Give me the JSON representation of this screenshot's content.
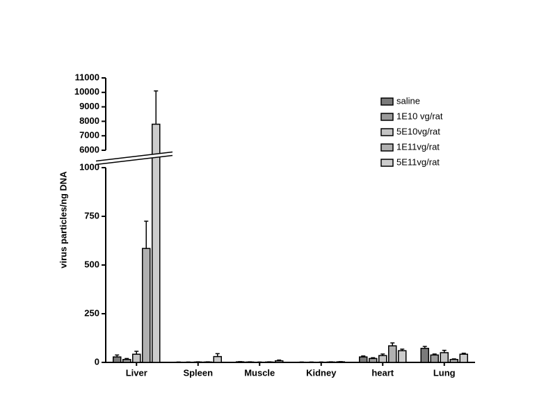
{
  "chart_data": {
    "type": "bar",
    "y_label": "virus particles/ng DNA",
    "categories": [
      "Liver",
      "Spleen",
      "Muscle",
      "Kidney",
      "heart",
      "Lung"
    ],
    "series": [
      {
        "name": "saline",
        "color": "#7a7a7a",
        "values": [
          28,
          1,
          3,
          1,
          28,
          72
        ],
        "errors": [
          10,
          1,
          1,
          1,
          5,
          10
        ]
      },
      {
        "name": "1E10 vg/rat",
        "color": "#9a9a9a",
        "values": [
          15,
          1,
          2,
          1,
          20,
          38
        ],
        "errors": [
          5,
          1,
          1,
          1,
          4,
          5
        ]
      },
      {
        "name": "5E10vg/rat",
        "color": "#c4c4c4",
        "values": [
          42,
          2,
          1,
          1,
          35,
          50
        ],
        "errors": [
          15,
          1,
          1,
          1,
          8,
          12
        ]
      },
      {
        "name": "1E11vg/rat",
        "color": "#b0b0b0",
        "values": [
          585,
          2,
          2,
          2,
          85,
          15
        ],
        "errors": [
          140,
          1,
          1,
          1,
          15,
          3
        ]
      },
      {
        "name": "5E11vg/rat",
        "color": "#cccccc",
        "values": [
          7800,
          30,
          8,
          3,
          60,
          42
        ],
        "errors": [
          2300,
          15,
          4,
          1,
          8,
          5
        ]
      }
    ],
    "ylim": [
      0,
      11000
    ],
    "ybreak": [
      1000,
      6000
    ],
    "yticks": [
      0,
      250,
      500,
      750,
      1000,
      6000,
      7000,
      8000,
      9000,
      10000,
      11000
    ]
  }
}
